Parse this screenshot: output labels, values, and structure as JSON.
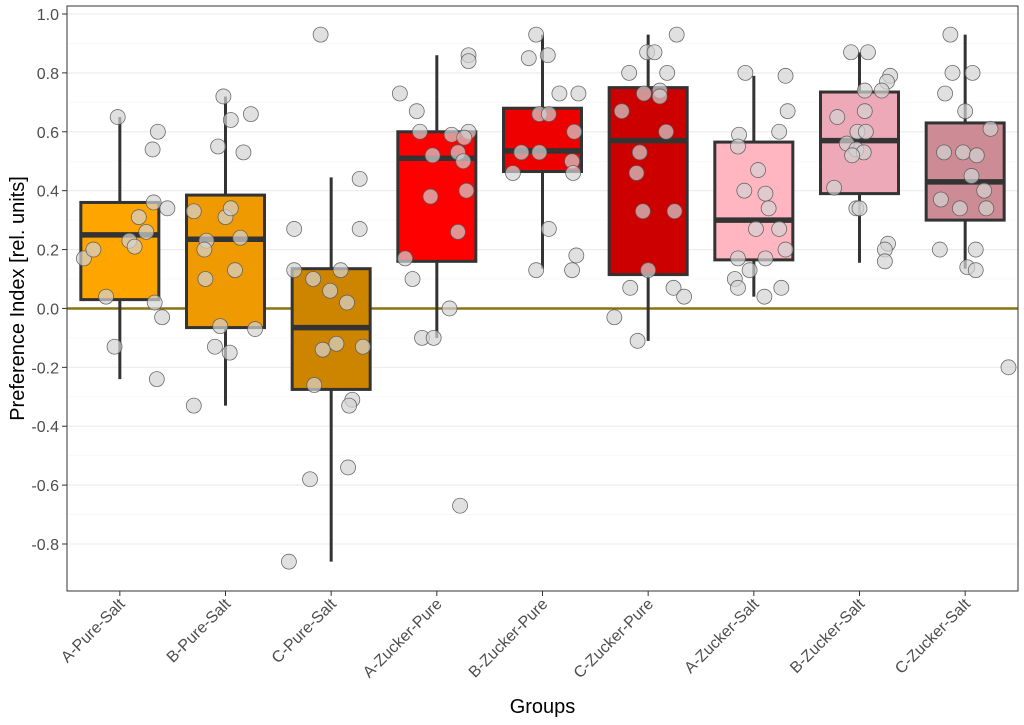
{
  "chart_data": {
    "type": "box",
    "xlabel": "Groups",
    "ylabel": "Preference Index [rel. units]",
    "ylim": [
      -0.96,
      1.0
    ],
    "yticks": [
      -0.8,
      -0.6,
      -0.4,
      -0.2,
      0.0,
      0.2,
      0.4,
      0.6,
      0.8,
      1.0
    ],
    "ytick_labels": [
      "-0.8",
      "-0.6",
      "-0.4",
      "-0.2",
      "0.0",
      "0.2",
      "0.4",
      "0.6",
      "0.8",
      "1.0"
    ],
    "reference_line": {
      "y": 0.0,
      "color": "#8b7314"
    },
    "grid": true,
    "categories": [
      "A-Pure-Salt",
      "B-Pure-Salt",
      "C-Pure-Salt",
      "A-Zucker-Pure",
      "B-Zucker-Pure",
      "C-Zucker-Pure",
      "A-Zucker-Salt",
      "B-Zucker-Salt",
      "C-Zucker-Salt"
    ],
    "boxes": [
      {
        "color": "#ffa500",
        "whisker_low": -0.24,
        "q1": 0.03,
        "median": 0.25,
        "q3": 0.36,
        "whisker_high": 0.65
      },
      {
        "color": "#ee9a00",
        "whisker_low": -0.33,
        "q1": -0.065,
        "median": 0.235,
        "q3": 0.385,
        "whisker_high": 0.72
      },
      {
        "color": "#cd8500",
        "whisker_low": -0.86,
        "q1": -0.275,
        "median": -0.065,
        "q3": 0.135,
        "whisker_high": 0.445
      },
      {
        "color": "#ff0000",
        "whisker_low": -0.1,
        "q1": 0.16,
        "median": 0.51,
        "q3": 0.6,
        "whisker_high": 0.86
      },
      {
        "color": "#ee0000",
        "whisker_low": 0.135,
        "q1": 0.465,
        "median": 0.535,
        "q3": 0.68,
        "whisker_high": 0.93
      },
      {
        "color": "#cd0000",
        "whisker_low": -0.11,
        "q1": 0.115,
        "median": 0.57,
        "q3": 0.75,
        "whisker_high": 0.93
      },
      {
        "color": "#ffb6c1",
        "whisker_low": 0.04,
        "q1": 0.165,
        "median": 0.3,
        "q3": 0.565,
        "whisker_high": 0.79
      },
      {
        "color": "#eea9b8",
        "whisker_low": 0.155,
        "q1": 0.39,
        "median": 0.57,
        "q3": 0.735,
        "whisker_high": 0.87
      },
      {
        "color": "#cd8c95",
        "whisker_low": 0.135,
        "q1": 0.3,
        "median": 0.43,
        "q3": 0.63,
        "whisker_high": 0.93
      }
    ],
    "points": [
      [
        [
          -0.24,
          0.35
        ],
        [
          0.02,
          0.33
        ],
        [
          0.54,
          0.31
        ],
        [
          -0.03,
          0.4
        ],
        [
          0.6,
          0.36
        ],
        [
          0.34,
          0.45
        ],
        [
          0.36,
          0.32
        ],
        [
          -0.13,
          -0.05
        ],
        [
          0.65,
          -0.02
        ],
        [
          0.23,
          0.09
        ],
        [
          0.31,
          0.18
        ],
        [
          0.17,
          -0.34
        ],
        [
          0.04,
          -0.13
        ],
        [
          0.26,
          0.25
        ],
        [
          0.21,
          0.14
        ],
        [
          0.2,
          -0.25
        ]
      ],
      [
        [
          -0.33,
          -0.3
        ],
        [
          0.33,
          -0.3
        ],
        [
          0.55,
          -0.07
        ],
        [
          0.72,
          -0.02
        ],
        [
          0.64,
          0.05
        ],
        [
          0.66,
          0.24
        ],
        [
          0.53,
          0.17
        ],
        [
          0.31,
          0.0
        ],
        [
          0.34,
          0.05
        ],
        [
          0.23,
          -0.18
        ],
        [
          0.2,
          -0.2
        ],
        [
          0.13,
          0.09
        ],
        [
          0.24,
          0.14
        ],
        [
          0.1,
          -0.19
        ],
        [
          -0.06,
          -0.05
        ],
        [
          -0.07,
          0.28
        ],
        [
          -0.13,
          -0.1
        ],
        [
          -0.15,
          0.04
        ]
      ],
      [
        [
          0.93,
          -0.1
        ],
        [
          0.44,
          0.27
        ],
        [
          0.27,
          0.27
        ],
        [
          0.27,
          -0.35
        ],
        [
          0.13,
          -0.35
        ],
        [
          0.13,
          0.09
        ],
        [
          0.1,
          -0.17
        ],
        [
          0.06,
          -0.01
        ],
        [
          0.02,
          0.15
        ],
        [
          -0.12,
          0.05
        ],
        [
          -0.14,
          -0.08
        ],
        [
          -0.13,
          0.3
        ],
        [
          -0.26,
          -0.16
        ],
        [
          -0.31,
          0.2
        ],
        [
          -0.33,
          0.17
        ],
        [
          -0.54,
          0.16
        ],
        [
          -0.58,
          -0.2
        ],
        [
          -0.86,
          -0.4
        ]
      ],
      [
        [
          0.86,
          0.3
        ],
        [
          0.84,
          0.3
        ],
        [
          0.73,
          -0.35
        ],
        [
          0.67,
          -0.19
        ],
        [
          0.6,
          -0.16
        ],
        [
          0.6,
          0.3
        ],
        [
          0.59,
          0.14
        ],
        [
          0.58,
          0.26
        ],
        [
          0.53,
          0.2
        ],
        [
          0.52,
          -0.04
        ],
        [
          0.5,
          0.25
        ],
        [
          0.4,
          0.28
        ],
        [
          0.38,
          -0.06
        ],
        [
          0.26,
          0.2
        ],
        [
          0.17,
          -0.3
        ],
        [
          0.1,
          -0.23
        ],
        [
          0.0,
          0.12
        ],
        [
          -0.1,
          -0.14
        ],
        [
          -0.1,
          -0.03
        ],
        [
          -0.67,
          0.22
        ]
      ],
      [
        [
          0.93,
          -0.06
        ],
        [
          0.86,
          0.05
        ],
        [
          0.85,
          -0.13
        ],
        [
          0.73,
          0.16
        ],
        [
          0.73,
          0.34
        ],
        [
          0.66,
          -0.03
        ],
        [
          0.66,
          0.06
        ],
        [
          0.6,
          0.3
        ],
        [
          0.53,
          -0.2
        ],
        [
          0.53,
          -0.03
        ],
        [
          0.5,
          0.28
        ],
        [
          0.46,
          -0.28
        ],
        [
          0.46,
          0.29
        ],
        [
          0.27,
          0.06
        ],
        [
          0.18,
          0.32
        ],
        [
          0.13,
          -0.06
        ],
        [
          0.13,
          0.28
        ]
      ],
      [
        [
          0.93,
          0.27
        ],
        [
          0.87,
          -0.01
        ],
        [
          0.87,
          0.06
        ],
        [
          0.8,
          -0.18
        ],
        [
          0.8,
          0.18
        ],
        [
          0.74,
          0.11
        ],
        [
          0.73,
          -0.04
        ],
        [
          0.72,
          0.11
        ],
        [
          0.67,
          -0.25
        ],
        [
          0.6,
          0.17
        ],
        [
          0.53,
          -0.08
        ],
        [
          0.46,
          -0.11
        ],
        [
          0.33,
          -0.05
        ],
        [
          0.33,
          0.25
        ],
        [
          0.13,
          0.0
        ],
        [
          0.07,
          -0.17
        ],
        [
          0.07,
          0.24
        ],
        [
          0.04,
          0.34
        ],
        [
          -0.03,
          -0.32
        ],
        [
          -0.11,
          -0.1
        ]
      ],
      [
        [
          0.8,
          -0.08
        ],
        [
          0.79,
          0.3
        ],
        [
          0.67,
          0.32
        ],
        [
          0.6,
          0.24
        ],
        [
          0.59,
          -0.14
        ],
        [
          0.55,
          -0.15
        ],
        [
          0.47,
          0.04
        ],
        [
          0.4,
          -0.09
        ],
        [
          0.39,
          0.11
        ],
        [
          0.34,
          0.14
        ],
        [
          0.27,
          0.02
        ],
        [
          0.27,
          0.24
        ],
        [
          0.2,
          0.3
        ],
        [
          0.17,
          -0.15
        ],
        [
          0.17,
          0.11
        ],
        [
          0.13,
          -0.04
        ],
        [
          0.1,
          -0.18
        ],
        [
          0.07,
          -0.15
        ],
        [
          0.07,
          0.26
        ],
        [
          0.04,
          0.1
        ]
      ],
      [
        [
          0.87,
          -0.08
        ],
        [
          0.87,
          0.08
        ],
        [
          0.79,
          0.29
        ],
        [
          0.77,
          0.26
        ],
        [
          0.74,
          0.05
        ],
        [
          0.74,
          0.21
        ],
        [
          0.67,
          0.05
        ],
        [
          0.65,
          -0.21
        ],
        [
          0.6,
          -0.02
        ],
        [
          0.6,
          0.06
        ],
        [
          0.56,
          -0.12
        ],
        [
          0.54,
          -0.03
        ],
        [
          0.53,
          0.04
        ],
        [
          0.52,
          -0.07
        ],
        [
          0.41,
          -0.24
        ],
        [
          0.34,
          -0.03
        ],
        [
          0.34,
          0.0
        ],
        [
          0.22,
          0.27
        ],
        [
          0.2,
          0.24
        ],
        [
          0.16,
          0.24
        ]
      ],
      [
        [
          0.93,
          -0.14
        ],
        [
          0.8,
          -0.12
        ],
        [
          0.8,
          0.07
        ],
        [
          0.73,
          -0.19
        ],
        [
          0.67,
          0.0
        ],
        [
          0.61,
          0.24
        ],
        [
          0.53,
          -0.2
        ],
        [
          0.53,
          -0.02
        ],
        [
          0.52,
          0.11
        ],
        [
          0.45,
          0.06
        ],
        [
          0.4,
          0.18
        ],
        [
          0.37,
          -0.23
        ],
        [
          0.34,
          -0.05
        ],
        [
          0.34,
          0.2
        ],
        [
          0.2,
          -0.24
        ],
        [
          0.2,
          0.1
        ],
        [
          0.14,
          0.02
        ],
        [
          0.13,
          0.1
        ],
        [
          -0.2,
          0.41
        ]
      ]
    ]
  }
}
